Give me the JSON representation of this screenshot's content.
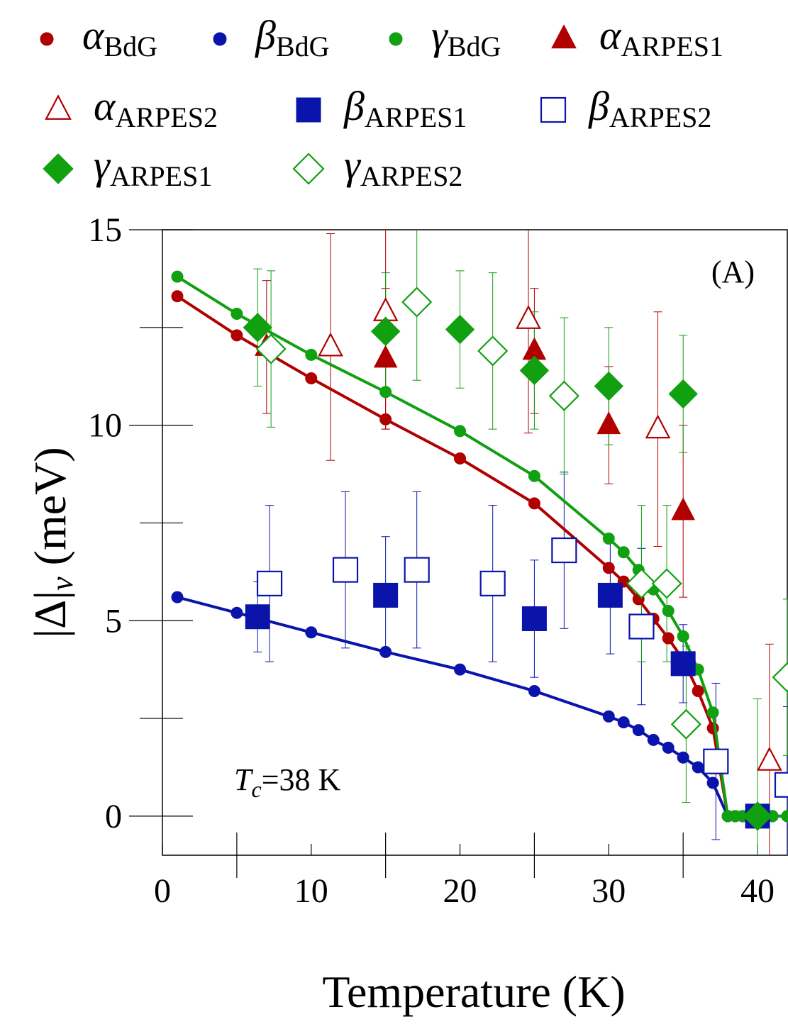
{
  "chart_data": {
    "type": "scatter",
    "panel_label": "(A)",
    "annotation": {
      "symbol": "T",
      "subscript": "c",
      "value": "=38 K"
    },
    "xlabel": "Temperature (K)",
    "ylabel": {
      "main": "|Δ|",
      "subscript": "ν",
      "unit": " (meV)"
    },
    "xlim": [
      0,
      42
    ],
    "ylim": [
      -1,
      15
    ],
    "x_ticks": [
      0,
      10,
      20,
      30,
      40
    ],
    "x_tick_labels": [
      "0",
      "10",
      "20",
      "30",
      "40"
    ],
    "x_minor_ticks": [
      5,
      15,
      25,
      35
    ],
    "y_ticks": [
      0,
      5,
      10,
      15
    ],
    "y_tick_labels": [
      "0",
      "5",
      "10",
      "15"
    ],
    "y_minor_ticks": [
      2.5,
      7.5,
      12.5
    ],
    "colors": {
      "red": "#b00000",
      "blue": "#0a14aa",
      "green": "#10a010"
    },
    "series": [
      {
        "name": "alpha_BdG",
        "greek": "α",
        "sub": "BdG",
        "kind": "line",
        "color": "red",
        "marker": "circle",
        "x": [
          1,
          5,
          10,
          15,
          20,
          25,
          30,
          31,
          32,
          33,
          34,
          35,
          36,
          37,
          38,
          38.5,
          39,
          40,
          41,
          42
        ],
        "y": [
          13.3,
          12.3,
          11.2,
          10.15,
          9.15,
          8.0,
          6.35,
          6.0,
          5.55,
          5.05,
          4.55,
          4.0,
          3.2,
          2.25,
          0,
          0,
          0,
          0,
          0,
          0
        ]
      },
      {
        "name": "beta_BdG",
        "greek": "β",
        "sub": "BdG",
        "kind": "line",
        "color": "blue",
        "marker": "circle",
        "x": [
          1,
          5,
          10,
          15,
          20,
          25,
          30,
          31,
          32,
          33,
          34,
          35,
          36,
          37,
          38,
          38.5,
          39,
          40,
          41,
          42
        ],
        "y": [
          5.6,
          5.2,
          4.7,
          4.2,
          3.75,
          3.2,
          2.55,
          2.4,
          2.2,
          1.95,
          1.75,
          1.5,
          1.25,
          0.85,
          0,
          0,
          0,
          0,
          0,
          0
        ]
      },
      {
        "name": "gamma_BdG",
        "greek": "γ",
        "sub": "BdG",
        "kind": "line",
        "color": "green",
        "marker": "circle",
        "x": [
          1,
          5,
          10,
          15,
          20,
          25,
          30,
          31,
          32,
          33,
          34,
          35,
          36,
          37,
          38,
          38.5,
          39,
          40,
          41,
          42
        ],
        "y": [
          13.8,
          12.85,
          11.8,
          10.85,
          9.85,
          8.7,
          7.1,
          6.75,
          6.3,
          5.8,
          5.25,
          4.6,
          3.75,
          2.65,
          0,
          0,
          0,
          0,
          0,
          0
        ]
      },
      {
        "name": "alpha_ARPES1",
        "greek": "α",
        "sub": "ARPES1",
        "kind": "points",
        "color": "red",
        "marker": "triangle",
        "filled": true,
        "points": [
          {
            "x": 7,
            "y": 12.0,
            "err": 1.7
          },
          {
            "x": 15,
            "y": 11.7,
            "err": 1.8
          },
          {
            "x": 25,
            "y": 11.9,
            "err": 1.6
          },
          {
            "x": 30,
            "y": 10.0,
            "err": 1.5
          },
          {
            "x": 35,
            "y": 7.8,
            "err": 2.2
          }
        ]
      },
      {
        "name": "alpha_ARPES2",
        "greek": "α",
        "sub": "ARPES2",
        "kind": "points",
        "color": "red",
        "marker": "triangle",
        "filled": false,
        "points": [
          {
            "x": 11.3,
            "y": 12.0,
            "err": 2.9
          },
          {
            "x": 15,
            "y": 12.9,
            "err": 3.0
          },
          {
            "x": 24.6,
            "y": 12.7,
            "err": 2.9
          },
          {
            "x": 33.3,
            "y": 9.9,
            "err": 3.0
          },
          {
            "x": 40.8,
            "y": 1.4,
            "err": 3.0
          }
        ]
      },
      {
        "name": "beta_ARPES1",
        "greek": "β",
        "sub": "ARPES1",
        "kind": "points",
        "color": "blue",
        "marker": "square",
        "filled": true,
        "points": [
          {
            "x": 6.4,
            "y": 5.1,
            "err": 0.9
          },
          {
            "x": 15,
            "y": 5.65,
            "err": 1.5
          },
          {
            "x": 25,
            "y": 5.05,
            "err": 1.5
          },
          {
            "x": 30.1,
            "y": 5.65,
            "err": 1.5
          },
          {
            "x": 35,
            "y": 3.9,
            "err": 1.0
          },
          {
            "x": 40,
            "y": 0.0,
            "err": 0
          }
        ]
      },
      {
        "name": "beta_ARPES2",
        "greek": "β",
        "sub": "ARPES2",
        "kind": "points",
        "color": "blue",
        "marker": "square",
        "filled": false,
        "points": [
          {
            "x": 7.2,
            "y": 5.95,
            "err": 2.0
          },
          {
            "x": 12.3,
            "y": 6.3,
            "err": 2.0
          },
          {
            "x": 17.1,
            "y": 6.3,
            "err": 2.0
          },
          {
            "x": 22.2,
            "y": 5.95,
            "err": 2.0
          },
          {
            "x": 27,
            "y": 6.8,
            "err": 2.0
          },
          {
            "x": 32.2,
            "y": 4.85,
            "err": 2.0
          },
          {
            "x": 37.2,
            "y": 1.4,
            "err": 2.0
          },
          {
            "x": 42,
            "y": 0.8,
            "err": 2.0
          }
        ]
      },
      {
        "name": "gamma_ARPES1",
        "greek": "γ",
        "sub": "ARPES1",
        "kind": "points",
        "color": "green",
        "marker": "diamond",
        "filled": true,
        "points": [
          {
            "x": 6.4,
            "y": 12.5,
            "err": 1.5
          },
          {
            "x": 15,
            "y": 12.4,
            "err": 1.5
          },
          {
            "x": 20,
            "y": 12.45,
            "err": 1.5
          },
          {
            "x": 25,
            "y": 11.4,
            "err": 1.5
          },
          {
            "x": 30,
            "y": 11.0,
            "err": 1.5
          },
          {
            "x": 35,
            "y": 10.8,
            "err": 1.5
          },
          {
            "x": 40,
            "y": 0.0,
            "err": 3.0
          }
        ]
      },
      {
        "name": "gamma_ARPES2",
        "greek": "γ",
        "sub": "ARPES2",
        "kind": "points",
        "color": "green",
        "marker": "diamond",
        "filled": false,
        "points": [
          {
            "x": 7.3,
            "y": 11.95,
            "err": 2.0
          },
          {
            "x": 17.1,
            "y": 13.15,
            "err": 2.0
          },
          {
            "x": 22.2,
            "y": 11.9,
            "err": 2.0
          },
          {
            "x": 27,
            "y": 10.75,
            "err": 2.0
          },
          {
            "x": 32.2,
            "y": 5.95,
            "err": 2.0
          },
          {
            "x": 33.9,
            "y": 5.95,
            "err": 2.0
          },
          {
            "x": 35.2,
            "y": 2.35,
            "err": 2.0
          },
          {
            "x": 42,
            "y": 3.55,
            "err": 2.0
          }
        ]
      }
    ],
    "legend_rows": [
      [
        "alpha_BdG",
        "beta_BdG",
        "gamma_BdG",
        "alpha_ARPES1"
      ],
      [
        "alpha_ARPES2",
        "beta_ARPES1",
        "beta_ARPES2"
      ],
      [
        "gamma_ARPES1",
        "gamma_ARPES2"
      ]
    ]
  }
}
